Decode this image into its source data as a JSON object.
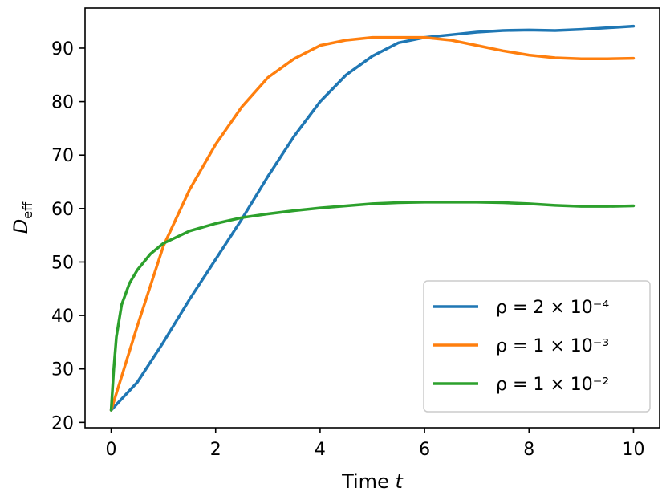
{
  "chart_data": {
    "type": "line",
    "xlabel": "Time",
    "xlabel_var": "t",
    "ylabel": "D",
    "ylabel_sub": "eff",
    "xlim": [
      -0.5,
      10.5
    ],
    "ylim": [
      19,
      97.5
    ],
    "xticks": [
      0,
      2,
      4,
      6,
      8,
      10
    ],
    "yticks": [
      20,
      30,
      40,
      50,
      60,
      70,
      80,
      90
    ],
    "grid": false,
    "legend_position": "lower-right",
    "series": [
      {
        "name": "ρ = 2 × 10⁻⁴",
        "color": "#1f77b4",
        "x": [
          0,
          0.5,
          1,
          1.5,
          2,
          2.5,
          3,
          3.5,
          4,
          4.5,
          5,
          5.5,
          6,
          6.5,
          7,
          7.5,
          8,
          8.5,
          9,
          9.5,
          10
        ],
        "y": [
          22.3,
          27.5,
          35,
          43,
          50.5,
          58,
          66,
          73.5,
          80,
          85,
          88.5,
          91,
          92,
          92.5,
          93,
          93.3,
          93.4,
          93.3,
          93.5,
          93.8,
          94.1
        ]
      },
      {
        "name": "ρ = 1 × 10⁻³",
        "color": "#ff7f0e",
        "x": [
          0,
          0.5,
          1,
          1.5,
          2,
          2.5,
          3,
          3.5,
          4,
          4.5,
          5,
          5.5,
          6,
          6.5,
          7,
          7.5,
          8,
          8.5,
          9,
          9.5,
          10
        ],
        "y": [
          22.3,
          38,
          53,
          63.5,
          72,
          79,
          84.5,
          88,
          90.5,
          91.5,
          92,
          92,
          92,
          91.5,
          90.5,
          89.5,
          88.7,
          88.2,
          88,
          88,
          88.1
        ]
      },
      {
        "name": "ρ = 1 × 10⁻²",
        "color": "#2ca02c",
        "x": [
          0,
          0.05,
          0.1,
          0.2,
          0.35,
          0.5,
          0.75,
          1,
          1.5,
          2,
          2.5,
          3,
          3.5,
          4,
          4.5,
          5,
          5.5,
          6,
          6.5,
          7,
          7.5,
          8,
          8.5,
          9,
          9.5,
          10
        ],
        "y": [
          22.3,
          30,
          36,
          42,
          46,
          48.5,
          51.5,
          53.5,
          55.8,
          57.2,
          58.3,
          59,
          59.6,
          60.1,
          60.5,
          60.9,
          61.1,
          61.2,
          61.2,
          61.2,
          61.1,
          60.9,
          60.6,
          60.4,
          60.4,
          60.5
        ]
      }
    ]
  }
}
